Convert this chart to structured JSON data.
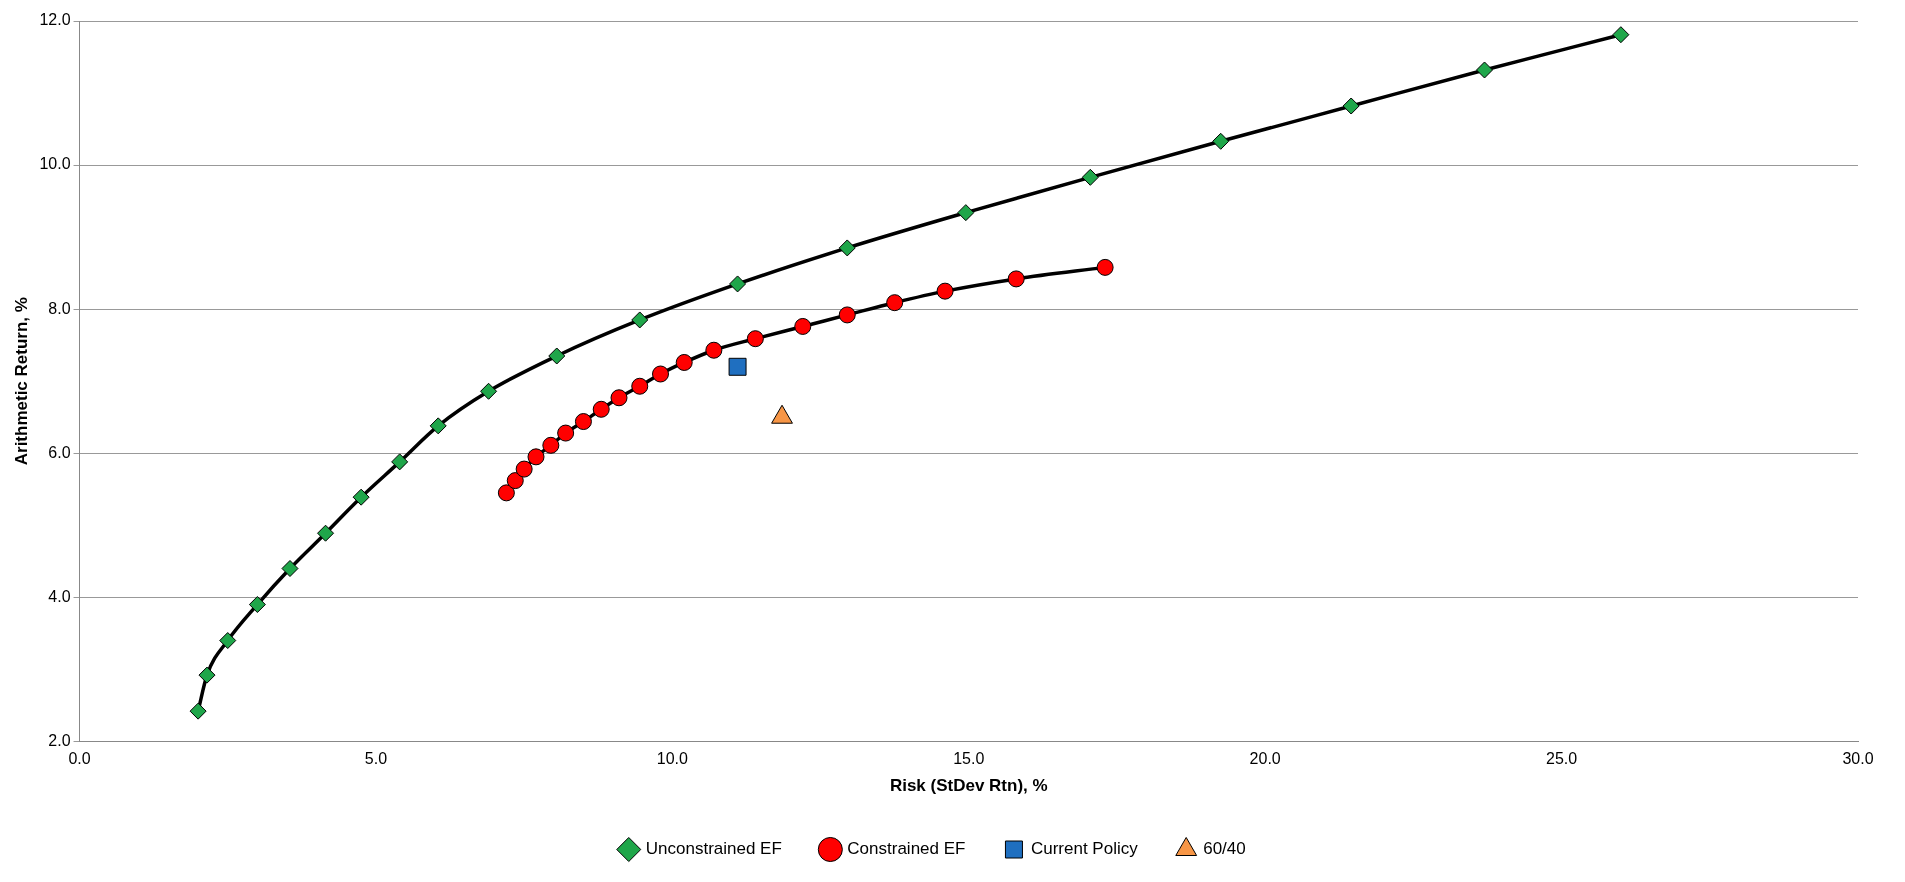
{
  "chart_data": {
    "type": "line",
    "xlabel": "Risk (StDev Rtn), %",
    "ylabel": "Arithmetic Return, %",
    "xlim": [
      0,
      30
    ],
    "xticks": [
      {
        "value": 0,
        "label": "0.0"
      },
      {
        "value": 5,
        "label": "5.0"
      },
      {
        "value": 10,
        "label": "10.0"
      },
      {
        "value": 15,
        "label": "15.0"
      },
      {
        "value": 20,
        "label": "20.0"
      },
      {
        "value": 25,
        "label": "25.0"
      },
      {
        "value": 30,
        "label": "30.0"
      }
    ],
    "ylim": [
      2,
      12
    ],
    "yticks": [
      {
        "value": 2,
        "label": "2.0"
      },
      {
        "value": 4,
        "label": "4.0"
      },
      {
        "value": 6,
        "label": "6.0"
      },
      {
        "value": 8,
        "label": "8.0"
      },
      {
        "value": 10,
        "label": "10.0"
      },
      {
        "value": 12,
        "label": "12.0"
      }
    ],
    "grid": "y",
    "legend": "bottom",
    "line_style": "solid",
    "series": [
      {
        "name": "Unconstrained EF",
        "marker": "diamond",
        "color": "#1fa64a",
        "x": [
          2.0,
          2.15,
          2.5,
          3.0,
          3.55,
          4.15,
          4.75,
          5.4,
          6.05,
          6.9,
          8.05,
          9.45,
          11.1,
          12.95,
          14.95,
          17.05,
          19.25,
          21.45,
          23.7,
          26.0
        ],
        "values": [
          2.42,
          2.92,
          3.4,
          3.9,
          4.4,
          4.89,
          5.39,
          5.88,
          6.38,
          6.86,
          7.35,
          7.85,
          8.35,
          8.85,
          9.34,
          9.83,
          10.33,
          10.82,
          11.32,
          11.81
        ]
      },
      {
        "name": "Constrained EF",
        "marker": "circle",
        "color": "#ff0000",
        "x": [
          7.2,
          7.35,
          7.5,
          7.7,
          7.95,
          8.2,
          8.5,
          8.8,
          9.1,
          9.45,
          9.8,
          10.2,
          10.7,
          11.4,
          12.2,
          12.95,
          13.75,
          14.6,
          15.8,
          17.3
        ],
        "values": [
          5.45,
          5.62,
          5.78,
          5.95,
          6.11,
          6.28,
          6.44,
          6.61,
          6.77,
          6.93,
          7.1,
          7.26,
          7.43,
          7.59,
          7.76,
          7.92,
          8.09,
          8.25,
          8.42,
          8.58
        ]
      },
      {
        "name": "Current Policy",
        "type": "scatter",
        "marker": "square",
        "color": "#1f6fc0",
        "x": [
          11.1
        ],
        "values": [
          7.2
        ]
      },
      {
        "name": "60/40",
        "type": "scatter",
        "marker": "triangle",
        "color": "#f79646",
        "x": [
          11.85
        ],
        "values": [
          6.5
        ]
      }
    ]
  }
}
